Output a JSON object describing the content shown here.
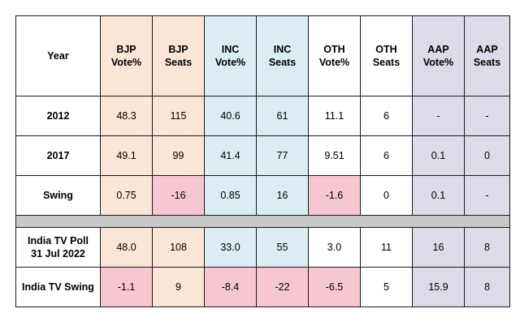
{
  "colors": {
    "bjp": "#fbe5d6",
    "inc": "#d9edf3",
    "aap": "#dddbe8",
    "negative": "#f6c7d0",
    "separator": "#c8c8c8"
  },
  "header": {
    "year": "Year",
    "bjp_vote": [
      "BJP",
      "Vote%"
    ],
    "bjp_seats": [
      "BJP",
      "Seats"
    ],
    "inc_vote": [
      "INC",
      "Vote%"
    ],
    "inc_seats": [
      "INC",
      "Seats"
    ],
    "oth_vote": [
      "OTH",
      "Vote%"
    ],
    "oth_seats": [
      "OTH",
      "Seats"
    ],
    "aap_vote": [
      "AAP",
      "Vote%"
    ],
    "aap_seats": [
      "AAP",
      "Seats"
    ]
  },
  "rows": [
    {
      "label": "2012",
      "cells": [
        "48.3",
        "115",
        "40.6",
        "61",
        "11.1",
        "6",
        "-",
        "-"
      ]
    },
    {
      "label": "2017",
      "cells": [
        "49.1",
        "99",
        "41.4",
        "77",
        "9.51",
        "6",
        "0.1",
        "0"
      ]
    },
    {
      "label": "Swing",
      "cells": [
        "0.75",
        "-16",
        "0.85",
        "16",
        "-1.6",
        "0",
        "0.1",
        "-"
      ]
    },
    {
      "label": [
        "India TV Poll",
        "31 Jul 2022"
      ],
      "cells": [
        "48.0",
        "108",
        "33.0",
        "55",
        "3.0",
        "11",
        "16",
        "8"
      ]
    },
    {
      "label": "India TV Swing",
      "cells": [
        "-1.1",
        "9",
        "-8.4",
        "-22",
        "-6.5",
        "5",
        "15.9",
        "8"
      ]
    }
  ]
}
